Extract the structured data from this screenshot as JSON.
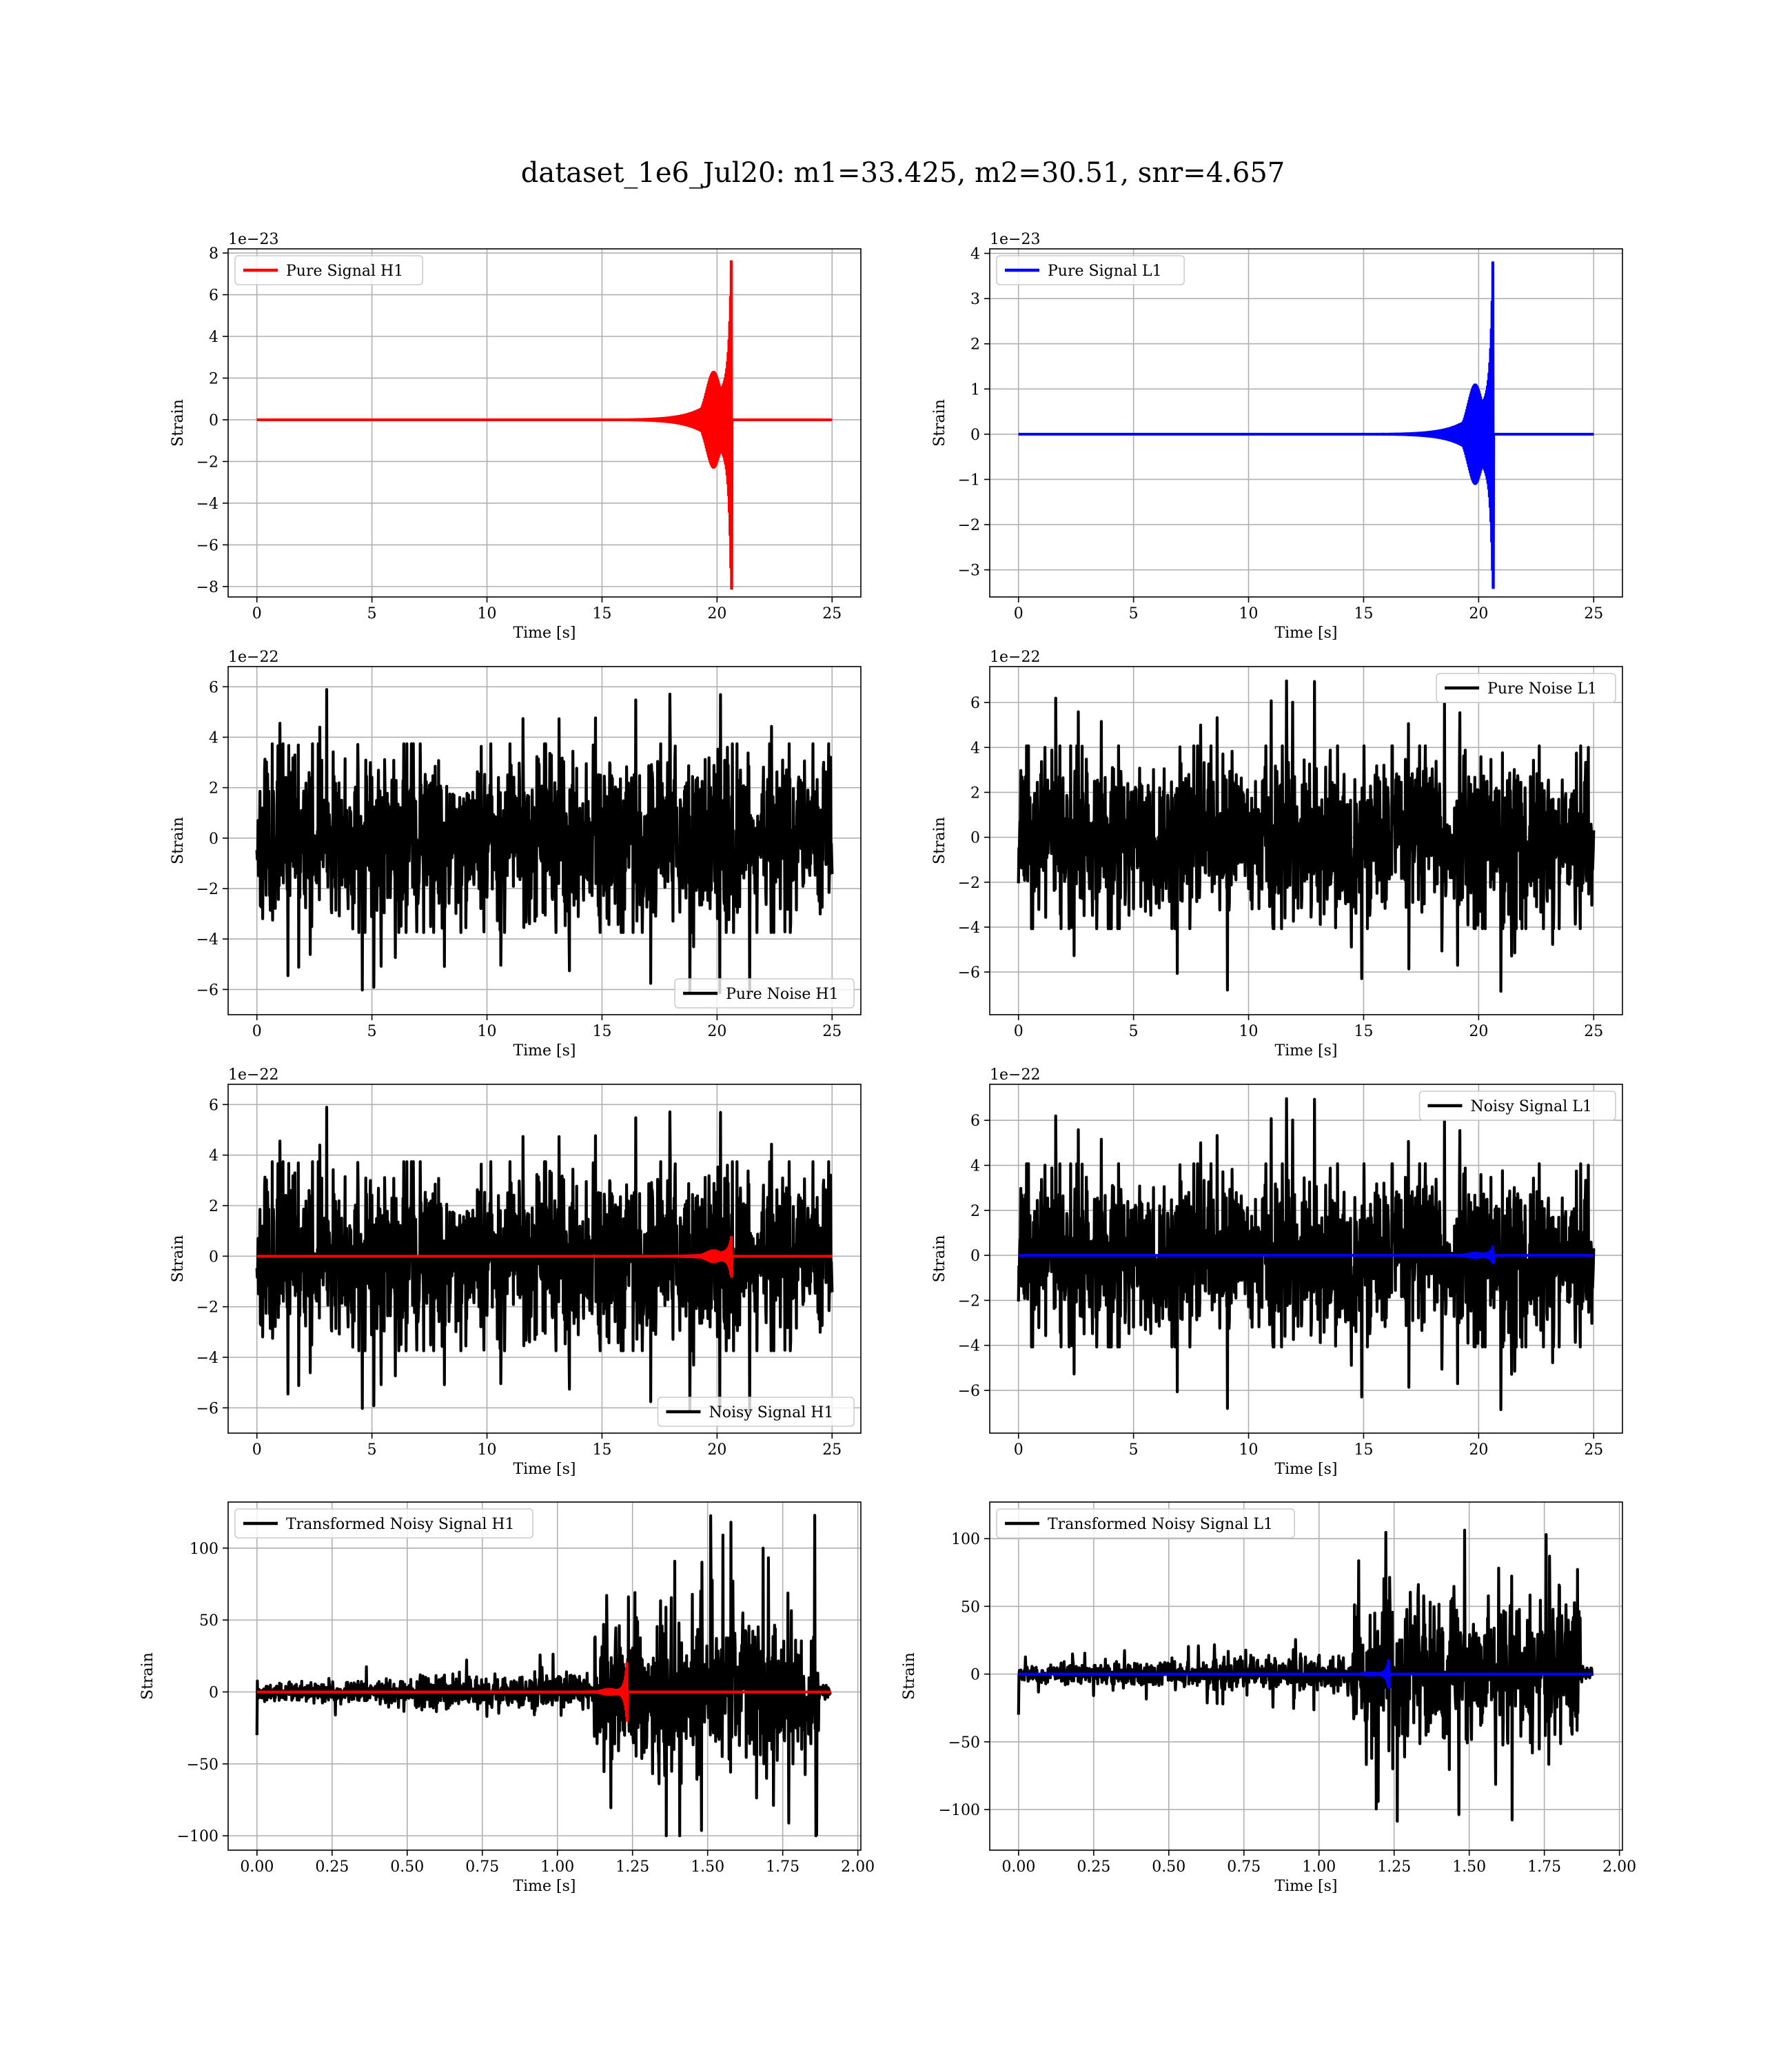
{
  "title": "dataset_1e6_Jul20: m1=33.425, m2=30.51, snr=4.657",
  "chart_data": [
    {
      "type": "line",
      "legend": "Pure Signal H1",
      "legend_pos": "upper left",
      "xlabel": "Time [s]",
      "ylabel": "Strain",
      "offset_text": "1e−23",
      "xlim": [
        -1.25,
        26.25
      ],
      "ylim": [
        -8.5,
        8.2
      ],
      "xticks": [
        0,
        5,
        10,
        15,
        20,
        25
      ],
      "xtick_labels": [
        "0",
        "5",
        "10",
        "15",
        "20",
        "25"
      ],
      "yticks": [
        -8,
        -6,
        -4,
        -2,
        0,
        2,
        4,
        6,
        8
      ],
      "ytick_labels": [
        "−8",
        "−6",
        "−4",
        "−2",
        "0",
        "2",
        "4",
        "6",
        "8"
      ],
      "grid": true,
      "series": [
        {
          "kind": "chirp",
          "color": "#ff0000",
          "x_start": 0,
          "x_end": 25,
          "merger": 20.6,
          "peak_pos": 7.6,
          "peak_neg": -8.1,
          "precursor": 2.3
        }
      ]
    },
    {
      "type": "line",
      "legend": "Pure Signal L1",
      "legend_pos": "upper left",
      "xlabel": "Time [s]",
      "ylabel": "Strain",
      "offset_text": "1e−23",
      "xlim": [
        -1.25,
        26.25
      ],
      "ylim": [
        -3.6,
        4.1
      ],
      "xticks": [
        0,
        5,
        10,
        15,
        20,
        25
      ],
      "xtick_labels": [
        "0",
        "5",
        "10",
        "15",
        "20",
        "25"
      ],
      "yticks": [
        -3,
        -2,
        -1,
        0,
        1,
        2,
        3,
        4
      ],
      "ytick_labels": [
        "−3",
        "−2",
        "−1",
        "0",
        "1",
        "2",
        "3",
        "4"
      ],
      "grid": true,
      "series": [
        {
          "kind": "chirp",
          "color": "#0000ff",
          "x_start": 0,
          "x_end": 25,
          "merger": 20.6,
          "peak_pos": 3.8,
          "peak_neg": -3.4,
          "precursor": 1.1
        }
      ]
    },
    {
      "type": "line",
      "legend": "Pure Noise H1",
      "legend_pos": "lower right",
      "xlabel": "Time [s]",
      "ylabel": "Strain",
      "offset_text": "1e−22",
      "xlim": [
        -1.25,
        26.25
      ],
      "ylim": [
        -7.0,
        6.8
      ],
      "xticks": [
        0,
        5,
        10,
        15,
        20,
        25
      ],
      "xtick_labels": [
        "0",
        "5",
        "10",
        "15",
        "20",
        "25"
      ],
      "yticks": [
        -6,
        -4,
        -2,
        0,
        2,
        4,
        6
      ],
      "ytick_labels": [
        "−6",
        "−4",
        "−2",
        "0",
        "2",
        "4",
        "6"
      ],
      "grid": true,
      "series": [
        {
          "kind": "noise",
          "color": "#000000",
          "x_start": 0,
          "x_end": 25,
          "core": 3.4,
          "peak_max": 6.4,
          "peak_min": -6.5,
          "seed": 11
        }
      ]
    },
    {
      "type": "line",
      "legend": "Pure Noise L1",
      "legend_pos": "upper right",
      "xlabel": "Time [s]",
      "ylabel": "Strain",
      "offset_text": "1e−22",
      "xlim": [
        -1.25,
        26.25
      ],
      "ylim": [
        -7.9,
        7.6
      ],
      "xticks": [
        0,
        5,
        10,
        15,
        20,
        25
      ],
      "xtick_labels": [
        "0",
        "5",
        "10",
        "15",
        "20",
        "25"
      ],
      "yticks": [
        -6,
        -4,
        -2,
        0,
        2,
        4,
        6
      ],
      "ytick_labels": [
        "−6",
        "−4",
        "−2",
        "0",
        "2",
        "4",
        "6"
      ],
      "grid": true,
      "series": [
        {
          "kind": "noise",
          "color": "#000000",
          "x_start": 0,
          "x_end": 25,
          "core": 3.7,
          "peak_max": 7.0,
          "peak_min": -7.1,
          "seed": 23
        }
      ]
    },
    {
      "type": "line",
      "legend": "Noisy Signal H1",
      "legend_pos": "lower right",
      "xlabel": "Time [s]",
      "ylabel": "Strain",
      "offset_text": "1e−22",
      "xlim": [
        -1.25,
        26.25
      ],
      "ylim": [
        -7.0,
        6.8
      ],
      "xticks": [
        0,
        5,
        10,
        15,
        20,
        25
      ],
      "xtick_labels": [
        "0",
        "5",
        "10",
        "15",
        "20",
        "25"
      ],
      "yticks": [
        -6,
        -4,
        -2,
        0,
        2,
        4,
        6
      ],
      "ytick_labels": [
        "−6",
        "−4",
        "−2",
        "0",
        "2",
        "4",
        "6"
      ],
      "grid": true,
      "series": [
        {
          "kind": "noise",
          "color": "#000000",
          "x_start": 0,
          "x_end": 25,
          "core": 3.4,
          "peak_max": 6.4,
          "peak_min": -6.5,
          "seed": 11
        },
        {
          "kind": "chirp",
          "color": "#ff0000",
          "x_start": 0,
          "x_end": 25,
          "merger": 20.6,
          "peak_pos": 0.76,
          "peak_neg": -0.81,
          "precursor": 0.23
        }
      ]
    },
    {
      "type": "line",
      "legend": "Noisy Signal L1",
      "legend_pos": "upper right",
      "xlabel": "Time [s]",
      "ylabel": "Strain",
      "offset_text": "1e−22",
      "xlim": [
        -1.25,
        26.25
      ],
      "ylim": [
        -7.9,
        7.6
      ],
      "xticks": [
        0,
        5,
        10,
        15,
        20,
        25
      ],
      "xtick_labels": [
        "0",
        "5",
        "10",
        "15",
        "20",
        "25"
      ],
      "yticks": [
        -6,
        -4,
        -2,
        0,
        2,
        4,
        6
      ],
      "ytick_labels": [
        "−6",
        "−4",
        "−2",
        "0",
        "2",
        "4",
        "6"
      ],
      "grid": true,
      "series": [
        {
          "kind": "noise",
          "color": "#000000",
          "x_start": 0,
          "x_end": 25,
          "core": 3.7,
          "peak_max": 7.0,
          "peak_min": -7.1,
          "seed": 23
        },
        {
          "kind": "chirp",
          "color": "#0000ff",
          "x_start": 0,
          "x_end": 25,
          "merger": 20.6,
          "peak_pos": 0.38,
          "peak_neg": -0.34,
          "precursor": 0.11
        }
      ]
    },
    {
      "type": "line",
      "legend": "Transformed Noisy Signal H1",
      "legend_pos": "upper left",
      "xlabel": "Time [s]",
      "ylabel": "Strain",
      "offset_text": "",
      "xlim": [
        -0.096,
        2.01
      ],
      "ylim": [
        -110,
        132
      ],
      "xticks": [
        0,
        0.25,
        0.5,
        0.75,
        1.0,
        1.25,
        1.5,
        1.75,
        2.0
      ],
      "xtick_labels": [
        "0.00",
        "0.25",
        "0.50",
        "0.75",
        "1.00",
        "1.25",
        "1.50",
        "1.75",
        "2.00"
      ],
      "yticks": [
        -100,
        -50,
        0,
        50,
        100
      ],
      "ytick_labels": [
        "−100",
        "−50",
        "0",
        "50",
        "100"
      ],
      "grid": true,
      "series": [
        {
          "kind": "transformed",
          "color": "#000000",
          "x_start": 0,
          "x_end": 1.91,
          "jump_at": 1.12,
          "drop_at": 1.87,
          "pre_amp": 8,
          "post_amp": 45,
          "peak_max": 125,
          "peak_min": -100,
          "seed": 37
        },
        {
          "kind": "chirp",
          "color": "#ff0000",
          "x_start": 0,
          "x_end": 1.91,
          "merger": 1.23,
          "peak_pos": 20,
          "peak_neg": -20,
          "precursor": 2
        }
      ]
    },
    {
      "type": "line",
      "legend": "Transformed Noisy Signal L1",
      "legend_pos": "upper left",
      "xlabel": "Time [s]",
      "ylabel": "Strain",
      "offset_text": "",
      "xlim": [
        -0.096,
        2.01
      ],
      "ylim": [
        -130,
        127
      ],
      "xticks": [
        0,
        0.25,
        0.5,
        0.75,
        1.0,
        1.25,
        1.5,
        1.75,
        2.0
      ],
      "xtick_labels": [
        "0.00",
        "0.25",
        "0.50",
        "0.75",
        "1.00",
        "1.25",
        "1.50",
        "1.75",
        "2.00"
      ],
      "yticks": [
        -100,
        -50,
        0,
        50,
        100
      ],
      "ytick_labels": [
        "−100",
        "−50",
        "0",
        "50",
        "100"
      ],
      "grid": true,
      "series": [
        {
          "kind": "transformed",
          "color": "#000000",
          "x_start": 0,
          "x_end": 1.91,
          "jump_at": 1.11,
          "drop_at": 1.87,
          "pre_amp": 8,
          "post_amp": 45,
          "peak_max": 115,
          "peak_min": -118,
          "seed": 41
        },
        {
          "kind": "chirp",
          "color": "#0000ff",
          "x_start": 0,
          "x_end": 1.91,
          "merger": 1.23,
          "peak_pos": 10,
          "peak_neg": -10,
          "precursor": 1
        }
      ]
    }
  ]
}
